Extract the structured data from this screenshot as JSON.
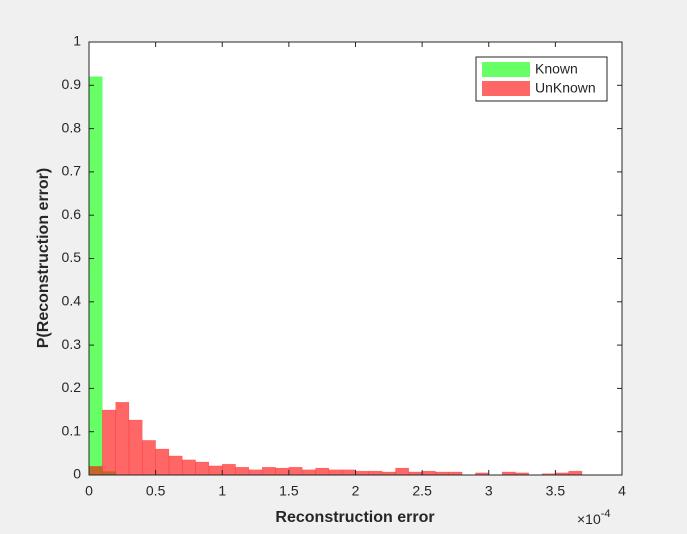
{
  "chart_data": {
    "type": "histogram",
    "xlabel": "Reconstruction error",
    "ylabel": "P(Reconstruction error)",
    "x_multiplier": {
      "base": "×10",
      "exponent": "-4"
    },
    "xlim": [
      0,
      4
    ],
    "xticks": [
      0,
      0.5,
      1,
      1.5,
      2,
      2.5,
      3,
      3.5,
      4
    ],
    "ylim": [
      0,
      1
    ],
    "yticks": [
      0,
      0.1,
      0.2,
      0.3,
      0.4,
      0.5,
      0.6,
      0.7,
      0.8,
      0.9,
      1
    ],
    "legend": "northeast",
    "alpha": 0.6,
    "series": [
      {
        "name": "Known",
        "color": "#00ff00",
        "bins": [
          0,
          0.1,
          0.2
        ],
        "values": [
          0.92,
          0.008
        ]
      },
      {
        "name": "UnKnown",
        "color": "#ff0000",
        "bins": [
          0,
          0.1,
          0.2,
          0.3,
          0.4,
          0.5,
          0.6,
          0.7,
          0.8,
          0.9,
          1,
          1.1,
          1.2,
          1.3,
          1.4,
          1.5,
          1.6,
          1.7,
          1.8,
          1.9,
          2,
          2.1,
          2.2,
          2.3,
          2.4,
          2.5,
          2.6,
          2.7,
          2.8,
          2.9,
          3,
          3.1,
          3.2,
          3.3,
          3.4,
          3.5,
          3.6,
          3.7
        ],
        "values": [
          0.02,
          0.15,
          0.168,
          0.127,
          0.08,
          0.06,
          0.044,
          0.035,
          0.03,
          0.021,
          0.025,
          0.018,
          0.012,
          0.018,
          0.016,
          0.018,
          0.012,
          0.016,
          0.012,
          0.012,
          0.009,
          0.009,
          0.007,
          0.016,
          0.007,
          0.009,
          0.007,
          0.007,
          0,
          0.005,
          0,
          0.007,
          0.005,
          0,
          0.003,
          0.005,
          0.009
        ]
      }
    ]
  }
}
